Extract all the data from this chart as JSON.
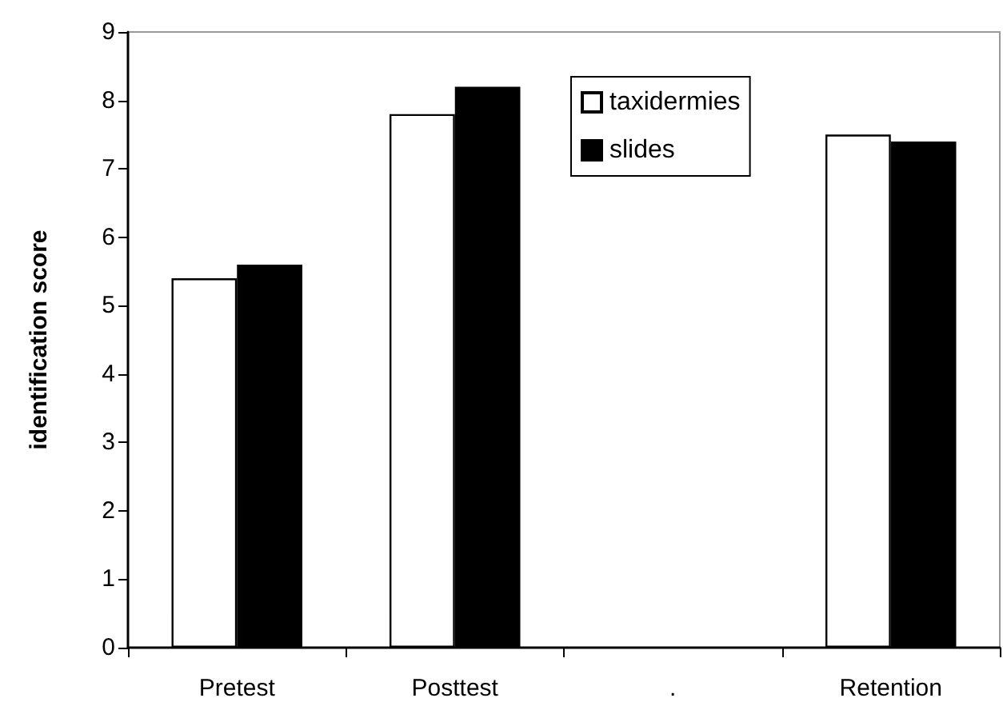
{
  "chart_data": {
    "type": "bar",
    "ylabel": "identification score",
    "categories": [
      "Pretest",
      "Posttest",
      ".",
      "Retention"
    ],
    "series": [
      {
        "name": "taxidermies",
        "color": "#ffffff",
        "values": [
          5.4,
          7.8,
          null,
          7.5
        ]
      },
      {
        "name": "slides",
        "color": "#000000",
        "values": [
          5.6,
          8.2,
          null,
          7.4
        ]
      }
    ],
    "ylim": [
      0,
      9
    ],
    "yticks": [
      0,
      1,
      2,
      3,
      4,
      5,
      6,
      7,
      8,
      9
    ],
    "grid": false,
    "legend": "top right"
  }
}
